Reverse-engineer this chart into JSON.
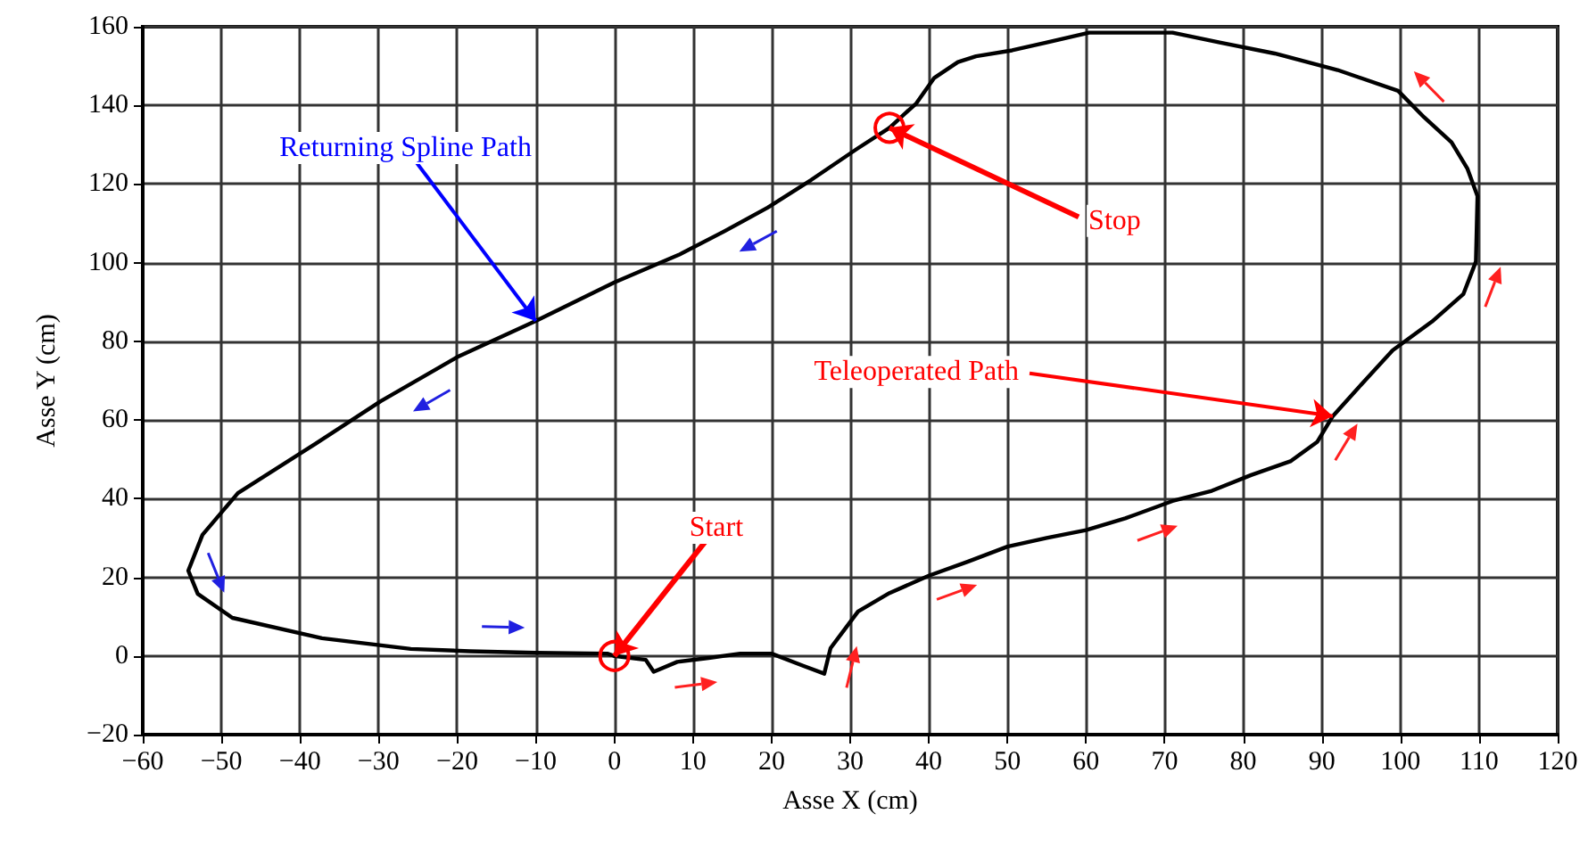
{
  "chart_data": {
    "type": "line",
    "xlabel": "Asse X (cm)",
    "ylabel": "Asse Y (cm)",
    "xlim": [
      -60,
      120
    ],
    "ylim": [
      -20,
      160
    ],
    "xticks": [
      {
        "value": -60,
        "label": "−60"
      },
      {
        "value": -50,
        "label": "−50"
      },
      {
        "value": -40,
        "label": "−40"
      },
      {
        "value": -30,
        "label": "−30"
      },
      {
        "value": -20,
        "label": "−20"
      },
      {
        "value": -10,
        "label": "−10"
      },
      0,
      10,
      20,
      30,
      40,
      50,
      60,
      70,
      80,
      90,
      100,
      110,
      120
    ],
    "yticks": [
      {
        "value": -20,
        "label": "−20"
      },
      0,
      20,
      40,
      60,
      80,
      100,
      120,
      140,
      160
    ],
    "grid": true,
    "series": [
      {
        "color": "#000000",
        "x": [
          0,
          4,
          5,
          8,
          12,
          16,
          20,
          24,
          26.7,
          27.5,
          29,
          31,
          35,
          40,
          45,
          50,
          55,
          60,
          65,
          71,
          76,
          81,
          86,
          89.4,
          91.4,
          95,
          99,
          104,
          108,
          109.6,
          109.8,
          108.5,
          106.5,
          103,
          99.7,
          92,
          84,
          77,
          71,
          65,
          60.4,
          55,
          50.6,
          46,
          43.7,
          40.7,
          38.4,
          37,
          35
        ],
        "values": [
          0,
          -1,
          -4,
          -1.5,
          -0.5,
          0.6,
          0.6,
          -2.5,
          -4.5,
          2,
          6,
          11.3,
          16,
          20.4,
          24,
          27.8,
          30,
          32,
          35,
          39.4,
          42,
          46,
          49.5,
          54.4,
          61,
          69,
          77.7,
          85,
          92,
          100.3,
          116.9,
          124,
          130.6,
          137,
          143.7,
          149,
          153.2,
          156,
          158.5,
          158.5,
          158.5,
          156,
          154,
          152.5,
          151,
          147,
          140.5,
          138,
          134.3
        ]
      },
      {
        "color": "#000000",
        "x": [
          35,
          30.9,
          25,
          19.5,
          14,
          8.2,
          0,
          -10,
          -20,
          -29.7,
          -38,
          -47.9,
          -52.4,
          -54.2,
          -53,
          -48.6,
          -37.2,
          -25.9,
          -18.4,
          -10,
          -0.9,
          0
        ],
        "values": [
          134.3,
          129,
          121,
          114,
          108,
          102,
          95,
          85.2,
          76,
          64.8,
          54,
          41.4,
          30.8,
          21.7,
          15.8,
          9.7,
          4.5,
          1.8,
          1.2,
          0.8,
          0.6,
          0
        ]
      }
    ],
    "annotations": [
      {
        "text": "Start",
        "x": 0,
        "y": 0
      },
      {
        "text": "Stop",
        "x": 35,
        "y": 134.3
      },
      {
        "text": "Teleoperated Path",
        "x": 91.4,
        "y": 61
      },
      {
        "text": "Returning Spline Path",
        "x": -10,
        "y": 85.2
      }
    ]
  }
}
